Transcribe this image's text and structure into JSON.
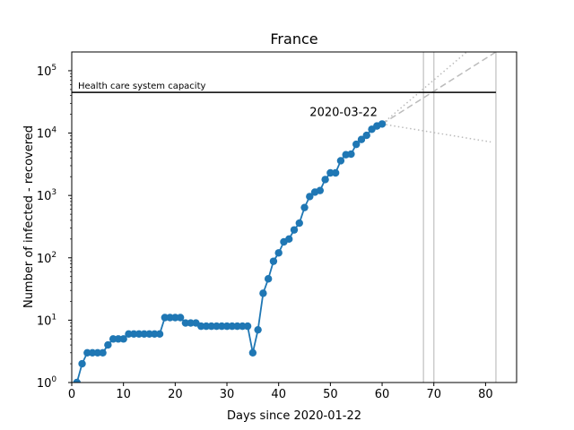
{
  "chart_data": {
    "type": "line",
    "title": "France",
    "xlabel": "Days since 2020-01-22",
    "ylabel": "Number of infected - recovered",
    "xlim": [
      0,
      86
    ],
    "ylim": [
      1,
      200000
    ],
    "yscale": "log",
    "xticks": [
      0,
      10,
      20,
      30,
      40,
      50,
      60,
      70,
      80
    ],
    "yticks": [
      {
        "value": 1,
        "base": "10",
        "exp": "0"
      },
      {
        "value": 10,
        "base": "10",
        "exp": "1"
      },
      {
        "value": 100,
        "base": "10",
        "exp": "2"
      },
      {
        "value": 1000,
        "base": "10",
        "exp": "3"
      },
      {
        "value": 10000,
        "base": "10",
        "exp": "4"
      },
      {
        "value": 100000,
        "base": "10",
        "exp": "5"
      }
    ],
    "colors": {
      "series": "#1f77b4",
      "capacity": "#000000",
      "projection": "#bbbbbb",
      "vline": "#cccccc"
    },
    "series": [
      {
        "x": [
          1,
          2,
          3,
          4,
          5,
          6,
          7,
          8,
          9,
          10,
          11,
          12,
          13,
          14,
          15,
          16,
          17,
          18,
          19,
          20,
          21,
          22,
          23,
          24,
          25,
          26,
          27,
          28,
          29,
          30,
          31,
          32,
          33,
          34,
          35,
          36,
          37,
          38,
          39,
          40,
          41,
          42,
          43,
          44,
          45,
          46,
          47,
          48,
          49,
          50,
          51,
          52,
          53,
          54,
          55,
          56,
          57,
          58,
          59,
          60
        ],
        "y": [
          1,
          2,
          3,
          3,
          3,
          3,
          4,
          5,
          5,
          5,
          6,
          6,
          6,
          6,
          6,
          6,
          6,
          11,
          11,
          11,
          11,
          9,
          9,
          9,
          8,
          8,
          8,
          8,
          8,
          8,
          8,
          8,
          8,
          8,
          3,
          7,
          27,
          46,
          88,
          120,
          180,
          200,
          280,
          360,
          640,
          960,
          1130,
          1200,
          1800,
          2300,
          2300,
          3600,
          4500,
          4600,
          6600,
          7900,
          9200,
          11500,
          13000,
          14000
        ]
      }
    ],
    "capacity": {
      "label": "Health care system capacity",
      "value": 45000,
      "x_start": 0,
      "x_end": 82
    },
    "annotation": {
      "text": "2020-03-22",
      "x": 46,
      "y": 15000
    },
    "projections": [
      {
        "style": "dashed",
        "x": [
          60,
          82
        ],
        "y": [
          14000,
          200000
        ]
      },
      {
        "style": "dotted",
        "x": [
          60,
          82
        ],
        "y": [
          14000,
          500000
        ]
      },
      {
        "style": "dotted",
        "x": [
          60,
          81
        ],
        "y": [
          14000,
          7200
        ]
      }
    ],
    "vlines": [
      68,
      70,
      82
    ],
    "grid": false
  }
}
